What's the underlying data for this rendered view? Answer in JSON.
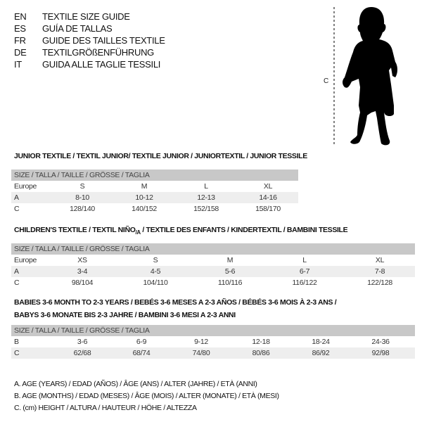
{
  "languages": [
    {
      "code": "EN",
      "label": "TEXTILE SIZE GUIDE"
    },
    {
      "code": "ES",
      "label": "GUÍA DE TALLAS"
    },
    {
      "code": "FR",
      "label": "GUIDE DES TAILLES TEXTILE"
    },
    {
      "code": "DE",
      "label": "TEXTILGRÖßENFÜHRUNG"
    },
    {
      "code": "IT",
      "label": "GUIDA ALLE TAGLIE TESSILI"
    }
  ],
  "figure": {
    "measure_label": "C"
  },
  "junior": {
    "title": "JUNIOR TEXTILE / TEXTIL JUNIOR/ TEXTILE JUNIOR / JUNIORTEXTIL / JUNIOR TESSILE",
    "header": "SIZE / TALLA / TAILLE / GRÖSSE / TAGLIA",
    "rows": [
      {
        "label": "Europe",
        "values": [
          "S",
          "M",
          "L",
          "XL"
        ]
      },
      {
        "label": "A",
        "values": [
          "8-10",
          "10-12",
          "12-13",
          "14-16"
        ]
      },
      {
        "label": "C",
        "values": [
          "128/140",
          "140/152",
          "152/158",
          "158/170"
        ]
      }
    ]
  },
  "children": {
    "title_main": "CHILDREN'S TEXTILE / TEXTIL NIÑO",
    "title_sub": "/A",
    "title_rest": " / TEXTILE DES ENFANTS / KINDERTEXTIL / BAMBINI TESSILE",
    "header": "SIZE / TALLA / TAILLE / GRÖSSE / TAGLIA",
    "rows": [
      {
        "label": "Europe",
        "values": [
          "XS",
          "S",
          "M",
          "L",
          "XL"
        ]
      },
      {
        "label": "A",
        "values": [
          "3-4",
          "4-5",
          "5-6",
          "6-7",
          "7-8"
        ]
      },
      {
        "label": "C",
        "values": [
          "98/104",
          "104/110",
          "110/116",
          "116/122",
          "122/128"
        ]
      }
    ]
  },
  "babies": {
    "title_line1": "BABIES 3-6 MONTH TO 2-3 YEARS / BEBÉS 3-6 MESES A 2-3 AÑOS / BÉBÉS 3-6 MOIS À 2-3 ANS /",
    "title_line2": "BABYS 3-6 MONATE BIS 2-3 JAHRE / BAMBINI 3-6 MESI A 2-3 ANNI",
    "header": "SIZE / TALLA / TAILLE / GRÖSSE / TAGLIA",
    "rows": [
      {
        "label": "B",
        "values": [
          "3-6",
          "6-9",
          "9-12",
          "12-18",
          "18-24",
          "24-36"
        ]
      },
      {
        "label": "C",
        "values": [
          "62/68",
          "68/74",
          "74/80",
          "80/86",
          "86/92",
          "92/98"
        ]
      }
    ]
  },
  "legend": [
    "A. AGE (YEARS) / EDAD (AÑOS) / ÂGE (ANS) / ALTER (JAHRE) / ETÀ (ANNI)",
    "B. AGE (MONTHS) / EDAD (MESES) / ÂGE (MOIS) / ALTER (MONATE) / ETÀ (MESI)",
    "C. (cm) HEIGHT / ALTURA / HAUTEUR / HÖHE / ALTEZZA"
  ]
}
